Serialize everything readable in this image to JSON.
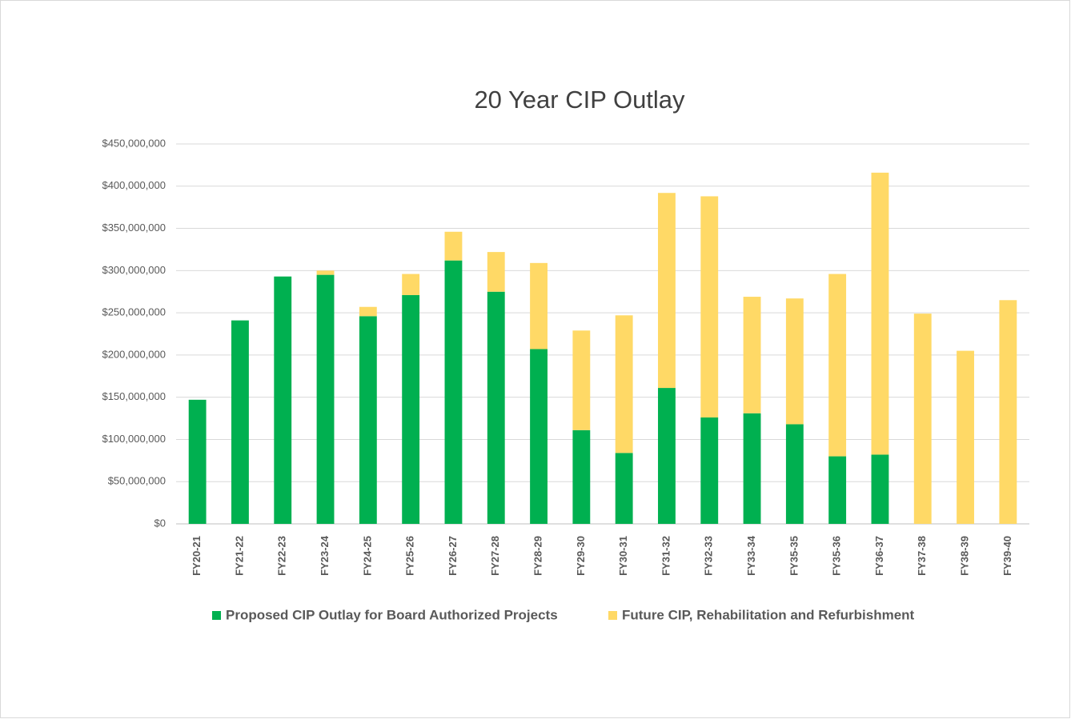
{
  "chart_data": {
    "type": "stacked_bar",
    "title": "20 Year CIP Outlay",
    "categories": [
      "FY20-21",
      "FY21-22",
      "FY22-23",
      "FY23-24",
      "FY24-25",
      "FY25-26",
      "FY26-27",
      "FY27-28",
      "FY28-29",
      "FY29-30",
      "FY30-31",
      "FY31-32",
      "FY32-33",
      "FY33-34",
      "FY35-35",
      "FY35-36",
      "FY36-37",
      "FY37-38",
      "FY38-39",
      "FY39-40"
    ],
    "series": [
      {
        "name": "Proposed CIP Outlay for Board Authorized Projects",
        "color": "#00b050",
        "values": [
          147000000,
          241000000,
          293000000,
          295000000,
          246000000,
          271000000,
          312000000,
          275000000,
          207000000,
          111000000,
          84000000,
          161000000,
          126000000,
          131000000,
          118000000,
          80000000,
          82000000,
          0,
          0,
          0
        ]
      },
      {
        "name": "Future CIP, Rehabilitation and Refurbishment",
        "color": "#ffd966",
        "values": [
          0,
          0,
          0,
          5000000,
          11000000,
          25000000,
          34000000,
          47000000,
          102000000,
          118000000,
          163000000,
          231000000,
          262000000,
          138000000,
          149000000,
          216000000,
          334000000,
          249000000,
          205000000,
          265000000
        ]
      }
    ],
    "ylim": [
      0,
      450000000
    ],
    "yticks": [
      {
        "value": 0,
        "label": "$0"
      },
      {
        "value": 50000000,
        "label": "$50,000,000"
      },
      {
        "value": 100000000,
        "label": "$100,000,000"
      },
      {
        "value": 150000000,
        "label": "$150,000,000"
      },
      {
        "value": 200000000,
        "label": "$200,000,000"
      },
      {
        "value": 250000000,
        "label": "$250,000,000"
      },
      {
        "value": 300000000,
        "label": "$300,000,000"
      },
      {
        "value": 350000000,
        "label": "$350,000,000"
      },
      {
        "value": 400000000,
        "label": "$400,000,000"
      },
      {
        "value": 450000000,
        "label": "$450,000,000"
      }
    ],
    "grid": true,
    "legend": "bottom"
  }
}
